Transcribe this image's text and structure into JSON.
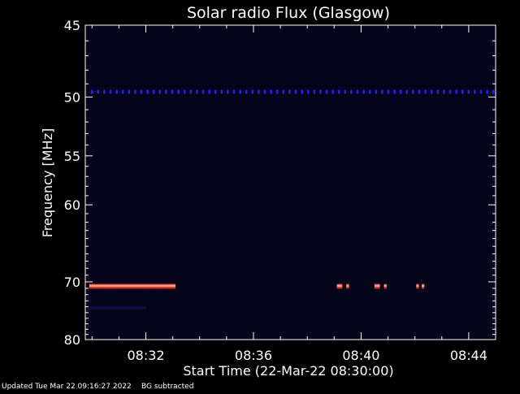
{
  "chart_data": {
    "type": "heatmap",
    "title": "Solar radio Flux (Glasgow)",
    "xlabel": "Start Time (22-Mar-22 08:30:00)",
    "ylabel": "Frequency [MHz]",
    "x_range_minutes": [
      29.75,
      45.0
    ],
    "x_ticks": [
      {
        "minutes": 32,
        "label": "08:32"
      },
      {
        "minutes": 36,
        "label": "08:36"
      },
      {
        "minutes": 40,
        "label": "08:40"
      },
      {
        "minutes": 44,
        "label": "08:44"
      }
    ],
    "y_range_mhz": [
      45,
      80
    ],
    "y_axis_inverted": true,
    "y_ticks": [
      {
        "value": 45,
        "label": "45"
      },
      {
        "value": 50,
        "label": "50"
      },
      {
        "value": 55,
        "label": "55"
      },
      {
        "value": 60,
        "label": "60"
      },
      {
        "value": 70,
        "label": "70"
      },
      {
        "value": 80,
        "label": "80"
      }
    ],
    "features": [
      {
        "kind": "band",
        "freq_mhz": 70.7,
        "start_min": 29.9,
        "end_min": 33.1,
        "intensity": "strong",
        "color": "#ff3020"
      },
      {
        "kind": "burst",
        "freq_mhz": 70.7,
        "start_min": 39.1,
        "end_min": 39.3,
        "intensity": "strong",
        "color": "#ff3020"
      },
      {
        "kind": "burst",
        "freq_mhz": 70.7,
        "start_min": 39.45,
        "end_min": 39.55,
        "intensity": "strong",
        "color": "#ff3020"
      },
      {
        "kind": "burst",
        "freq_mhz": 70.7,
        "start_min": 40.5,
        "end_min": 40.7,
        "intensity": "strong",
        "color": "#ff3020"
      },
      {
        "kind": "burst",
        "freq_mhz": 70.7,
        "start_min": 40.85,
        "end_min": 40.95,
        "intensity": "strong",
        "color": "#ff3020"
      },
      {
        "kind": "burst",
        "freq_mhz": 70.7,
        "start_min": 42.05,
        "end_min": 42.15,
        "intensity": "strong",
        "color": "#ff3020"
      },
      {
        "kind": "burst",
        "freq_mhz": 70.7,
        "start_min": 42.25,
        "end_min": 42.35,
        "intensity": "strong",
        "color": "#ff3020"
      },
      {
        "kind": "dotted-line",
        "freq_mhz": 49.6,
        "start_min": 29.9,
        "end_min": 45.0,
        "intensity": "weak",
        "color": "#2020ff"
      },
      {
        "kind": "faint-band",
        "freq_mhz": 74.2,
        "start_min": 29.9,
        "end_min": 32.0,
        "intensity": "very weak",
        "color": "#12125a"
      }
    ],
    "colors": {
      "background": "#000000",
      "plot_background": "#040418",
      "axes": "#ffffff"
    },
    "grid": false
  },
  "footer": {
    "updated": "Updated Tue Mar 22 09:16:27 2022",
    "note": "BG subtracted"
  }
}
